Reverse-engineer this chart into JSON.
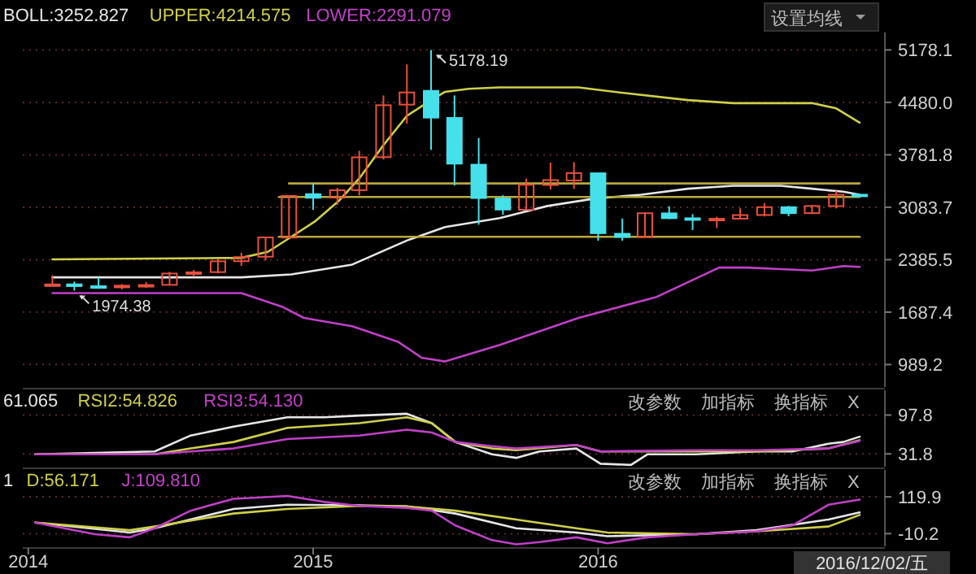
{
  "chart_data": [
    {
      "type": "candlestick",
      "xlim": [
        "2013-12-25",
        "2016-12-25"
      ],
      "tick_labels": "y",
      "ylim": [
        690,
        5410
      ],
      "yticks": [
        5178.1,
        {
          "value": 4480,
          "label": "4480.0"
        },
        3781.8,
        3083.7,
        2385.5,
        1687.4,
        989.2
      ],
      "grid": "y",
      "legend": "top left",
      "x": [
        "2014-02",
        "2014-03",
        "2014-04",
        "2014-05",
        "2014-06",
        "2014-07",
        "2014-08",
        "2014-09",
        "2014-10",
        "2014-11",
        "2014-12",
        "2015-01",
        "2015-02",
        "2015-03",
        "2015-04",
        "2015-05",
        "2015-06",
        "2015-07",
        "2015-08",
        "2015-09",
        "2015-10",
        "2015-11",
        "2015-12",
        "2016-01",
        "2016-02",
        "2016-03",
        "2016-04",
        "2016-05",
        "2016-06",
        "2016-07",
        "2016-08",
        "2016-09",
        "2016-10",
        "2016-11",
        "2016-12"
      ],
      "ohlc": [
        [
          2047,
          2177,
          2033,
          2056
        ],
        [
          2057,
          2093,
          1974,
          2033
        ],
        [
          2032,
          2146,
          1997,
          2026
        ],
        [
          2027,
          2061,
          1991,
          2039
        ],
        [
          2036,
          2087,
          2010,
          2048
        ],
        [
          2050,
          2224,
          2044,
          2201
        ],
        [
          2203,
          2248,
          2159,
          2217
        ],
        [
          2220,
          2391,
          2203,
          2364
        ],
        [
          2365,
          2478,
          2303,
          2420
        ],
        [
          2425,
          2688,
          2376,
          2682
        ],
        [
          2680,
          3239,
          2674,
          3234
        ],
        [
          3258,
          3406,
          3049,
          3210
        ],
        [
          3212,
          3342,
          3116,
          3310
        ],
        [
          3311,
          3835,
          3242,
          3748
        ],
        [
          3751,
          4572,
          3719,
          4442
        ],
        [
          4450,
          4986,
          4198,
          4612
        ],
        [
          4633,
          5178,
          3847,
          4277
        ],
        [
          4273,
          4572,
          3373,
          3664
        ],
        [
          3650,
          4006,
          2851,
          3206
        ],
        [
          3200,
          3243,
          2983,
          3053
        ],
        [
          3050,
          3464,
          3039,
          3383
        ],
        [
          3380,
          3679,
          3322,
          3445
        ],
        [
          3440,
          3684,
          3327,
          3539
        ],
        [
          3536,
          3539,
          2638,
          2738
        ],
        [
          2730,
          2933,
          2638,
          2688
        ],
        [
          2688,
          3019,
          2682,
          3004
        ],
        [
          3002,
          3097,
          2927,
          2938
        ],
        [
          2937,
          2992,
          2780,
          2917
        ],
        [
          2913,
          2957,
          2807,
          2930
        ],
        [
          2932,
          3070,
          2928,
          2979
        ],
        [
          2980,
          3140,
          2961,
          3085
        ],
        [
          3084,
          3101,
          2964,
          3005
        ],
        [
          3005,
          3112,
          2994,
          3100
        ],
        [
          3098,
          3301,
          3069,
          3250
        ],
        [
          3251,
          3264,
          3235,
          3244
        ]
      ],
      "colors": [
        "#e8503c",
        "#46e0ea",
        "#46e0ea",
        "#e8503c",
        "#e8503c",
        "#e8503c",
        "#e8503c",
        "#e8503c",
        "#e8503c",
        "#e8503c",
        "#e8503c",
        "#46e0ea",
        "#e8503c",
        "#e8503c",
        "#e8503c",
        "#e8503c",
        "#46e0ea",
        "#46e0ea",
        "#46e0ea",
        "#46e0ea",
        "#e8503c",
        "#e8503c",
        "#e8503c",
        "#46e0ea",
        "#46e0ea",
        "#e8503c",
        "#46e0ea",
        "#46e0ea",
        "#e8503c",
        "#e8503c",
        "#e8503c",
        "#46e0ea",
        "#e8503c",
        "#e8503c",
        "#46e0ea"
      ],
      "series": [
        {
          "type": "line",
          "name": "BOLL:3252.827",
          "color": "#e6e6e6",
          "x": [
            "2014-02-01",
            "2014-10-01",
            "2014-12-04",
            "2015-02-20",
            "2015-05-01",
            "2015-06-19",
            "2015-08-28",
            "2015-10-28",
            "2015-12-28",
            "2016-02-25",
            "2016-04-25",
            "2016-06-22",
            "2016-08-22",
            "2016-10-01",
            "2016-11-10",
            "2016-12-01"
          ],
          "values": [
            2150,
            2150,
            2190,
            2320,
            2640,
            2820,
            2940,
            3100,
            3200,
            3250,
            3330,
            3370,
            3370,
            3330,
            3290,
            3250
          ]
        },
        {
          "type": "line",
          "name": "UPPER:4214.575",
          "color": "#cfcf4a",
          "x": [
            "2014-02-01",
            "2014-10-01",
            "2014-11-04",
            "2014-12-04",
            "2015-01-04",
            "2015-02-04",
            "2015-03-02",
            "2015-04-01",
            "2015-05-01",
            "2015-06-01",
            "2015-06-19",
            "2015-07-19",
            "2015-08-28",
            "2015-12-07",
            "2016-02-07",
            "2016-04-25",
            "2016-06-22",
            "2016-10-01",
            "2016-11-01",
            "2016-12-01"
          ],
          "values": [
            2390,
            2410,
            2490,
            2690,
            2900,
            3180,
            3480,
            3910,
            4300,
            4510,
            4620,
            4660,
            4680,
            4680,
            4600,
            4510,
            4470,
            4470,
            4400,
            4210
          ]
        },
        {
          "type": "line",
          "name": "LOWER:2291.079",
          "color": "#c040c8",
          "x": [
            "2014-02-01",
            "2014-10-01",
            "2014-11-22",
            "2014-12-20",
            "2015-02-20",
            "2015-04-20",
            "2015-05-20",
            "2015-06-19",
            "2015-08-28",
            "2015-12-07",
            "2016-03-16",
            "2016-06-04",
            "2016-07-10",
            "2016-08-22",
            "2016-10-01",
            "2016-11-10",
            "2016-12-01"
          ],
          "values": [
            1940,
            1940,
            1760,
            1610,
            1500,
            1290,
            1080,
            1030,
            1250,
            1610,
            1890,
            2280,
            2280,
            2260,
            2240,
            2300,
            2290
          ]
        },
        {
          "type": "line",
          "color": "#b8a838",
          "x": [
            "2014-12-01",
            "2016-12-01"
          ],
          "values": [
            3400,
            3400
          ]
        },
        {
          "type": "line",
          "color": "#b8a838",
          "x": [
            "2014-11-18",
            "2016-12-01"
          ],
          "values": [
            3220,
            3220
          ]
        },
        {
          "type": "line",
          "color": "#b8a838",
          "x": [
            "2014-11-18",
            "2016-12-01"
          ],
          "values": [
            2690,
            2690
          ]
        }
      ],
      "annotations": [
        "设置均线",
        {
          "text": "5178.19",
          "x": "2015-06",
          "y": 5178
        },
        {
          "text": "1974.38",
          "x": "2014-03",
          "y": 1974
        }
      ]
    },
    {
      "type": "line",
      "xlim": [
        "2013-12-25",
        "2016-12-25"
      ],
      "tick_labels": "y",
      "ylim": [
        10,
        140
      ],
      "yticks": [
        97.8,
        31.8
      ],
      "grid": "y",
      "legend": "top left",
      "series": [
        {
          "name": "61.065",
          "color": "#e6e6e6",
          "x": [
            "2014-01-10",
            "2014-06-12",
            "2014-07-28",
            "2014-09-21",
            "2014-11-29",
            "2015-01-15",
            "2015-03-01",
            "2015-05-01",
            "2015-06-02",
            "2015-07-02",
            "2015-08-18",
            "2015-09-18",
            "2015-10-18",
            "2015-12-04",
            "2016-01-04",
            "2016-02-12",
            "2016-03-04",
            "2016-05-06",
            "2016-07-22",
            "2016-09-06",
            "2016-10-22",
            "2016-11-10",
            "2016-12-01"
          ],
          "values": [
            31,
            36,
            63,
            78,
            94,
            94,
            97,
            100,
            84,
            52,
            31,
            25,
            36,
            41,
            15,
            13,
            31,
            31,
            36,
            36,
            49,
            52,
            61
          ]
        },
        {
          "name": "RSI2:54.826",
          "color": "#cfcf4a",
          "x": [
            "2014-01-10",
            "2014-06-12",
            "2014-07-28",
            "2014-09-21",
            "2014-11-29",
            "2015-03-01",
            "2015-05-01",
            "2015-06-02",
            "2015-07-02",
            "2015-08-18",
            "2015-09-18",
            "2015-12-04",
            "2016-01-04",
            "2016-03-04",
            "2016-05-06",
            "2016-07-22",
            "2016-10-22",
            "2016-12-01"
          ],
          "values": [
            31,
            31,
            41,
            52,
            76,
            84,
            94,
            84,
            52,
            41,
            38,
            47,
            36,
            36,
            36,
            36,
            41,
            55
          ]
        },
        {
          "name": "RSI3:54.130",
          "color": "#c040c8",
          "x": [
            "2014-01-10",
            "2014-06-12",
            "2014-07-28",
            "2014-09-21",
            "2014-11-29",
            "2015-03-01",
            "2015-05-01",
            "2015-06-02",
            "2015-07-02",
            "2015-08-18",
            "2015-09-18",
            "2015-12-04",
            "2016-01-04",
            "2016-05-06",
            "2016-07-22",
            "2016-10-22",
            "2016-12-01"
          ],
          "values": [
            31,
            31,
            36,
            41,
            57,
            63,
            73,
            68,
            52,
            45,
            41,
            47,
            36,
            38,
            38,
            41,
            54
          ]
        }
      ],
      "annotations": [
        "改参数",
        "加指标",
        "换指标",
        "X"
      ]
    },
    {
      "type": "line",
      "xlim": [
        "2013-12-25",
        "2016-12-25"
      ],
      "xticks": [
        {
          "value": "2014-01",
          "label": "2014"
        },
        {
          "value": "2015-01",
          "label": "2015"
        },
        {
          "value": "2016-01",
          "label": "2016"
        }
      ],
      "ylim": [
        -55,
        215
      ],
      "yticks": [
        119.9,
        -10.2
      ],
      "grid": "y",
      "legend": "top left",
      "series": [
        {
          "name": "1",
          "color": "#e6e6e6",
          "x": [
            "2014-01-10",
            "2014-05-11",
            "2014-06-12",
            "2014-09-21",
            "2014-11-29",
            "2015-03-01",
            "2015-05-01",
            "2015-07-02",
            "2015-09-18",
            "2015-12-04",
            "2016-01-13",
            "2016-05-06",
            "2016-07-22",
            "2016-10-22",
            "2016-12-01"
          ],
          "values": [
            29,
            -6,
            9,
            77,
            92,
            90,
            86,
            61,
            9,
            -6,
            -19,
            -12,
            2,
            40,
            65
          ]
        },
        {
          "name": "D:56.171",
          "color": "#cfcf4a",
          "x": [
            "2014-01-10",
            "2014-05-11",
            "2014-06-12",
            "2014-09-21",
            "2014-11-29",
            "2015-03-01",
            "2015-05-01",
            "2015-07-02",
            "2015-09-18",
            "2015-12-04",
            "2016-01-13",
            "2016-05-06",
            "2016-07-22",
            "2016-10-22",
            "2016-12-01"
          ],
          "values": [
            29,
            2,
            15,
            61,
            77,
            88,
            86,
            71,
            40,
            9,
            -6,
            -12,
            -2,
            15,
            56
          ]
        },
        {
          "name": "J:109.810",
          "color": "#c040c8",
          "x": [
            "2014-01-10",
            "2014-03-27",
            "2014-05-11",
            "2014-06-12",
            "2014-07-28",
            "2014-09-21",
            "2014-11-29",
            "2015-01-15",
            "2015-03-01",
            "2015-05-01",
            "2015-06-02",
            "2015-07-02",
            "2015-08-18",
            "2015-09-18",
            "2015-10-18",
            "2015-12-04",
            "2016-01-13",
            "2016-03-04",
            "2016-05-06",
            "2016-07-22",
            "2016-09-06",
            "2016-10-22",
            "2016-12-01"
          ],
          "values": [
            29,
            -12,
            -23,
            9,
            71,
            113,
            123,
            102,
            88,
            81,
            71,
            19,
            -33,
            -48,
            -40,
            -23,
            -44,
            -23,
            -12,
            -2,
            19,
            92,
            110
          ]
        }
      ],
      "annotations": [
        "改参数",
        "加指标",
        "换指标",
        "X",
        "2016/12/02/五"
      ]
    }
  ]
}
